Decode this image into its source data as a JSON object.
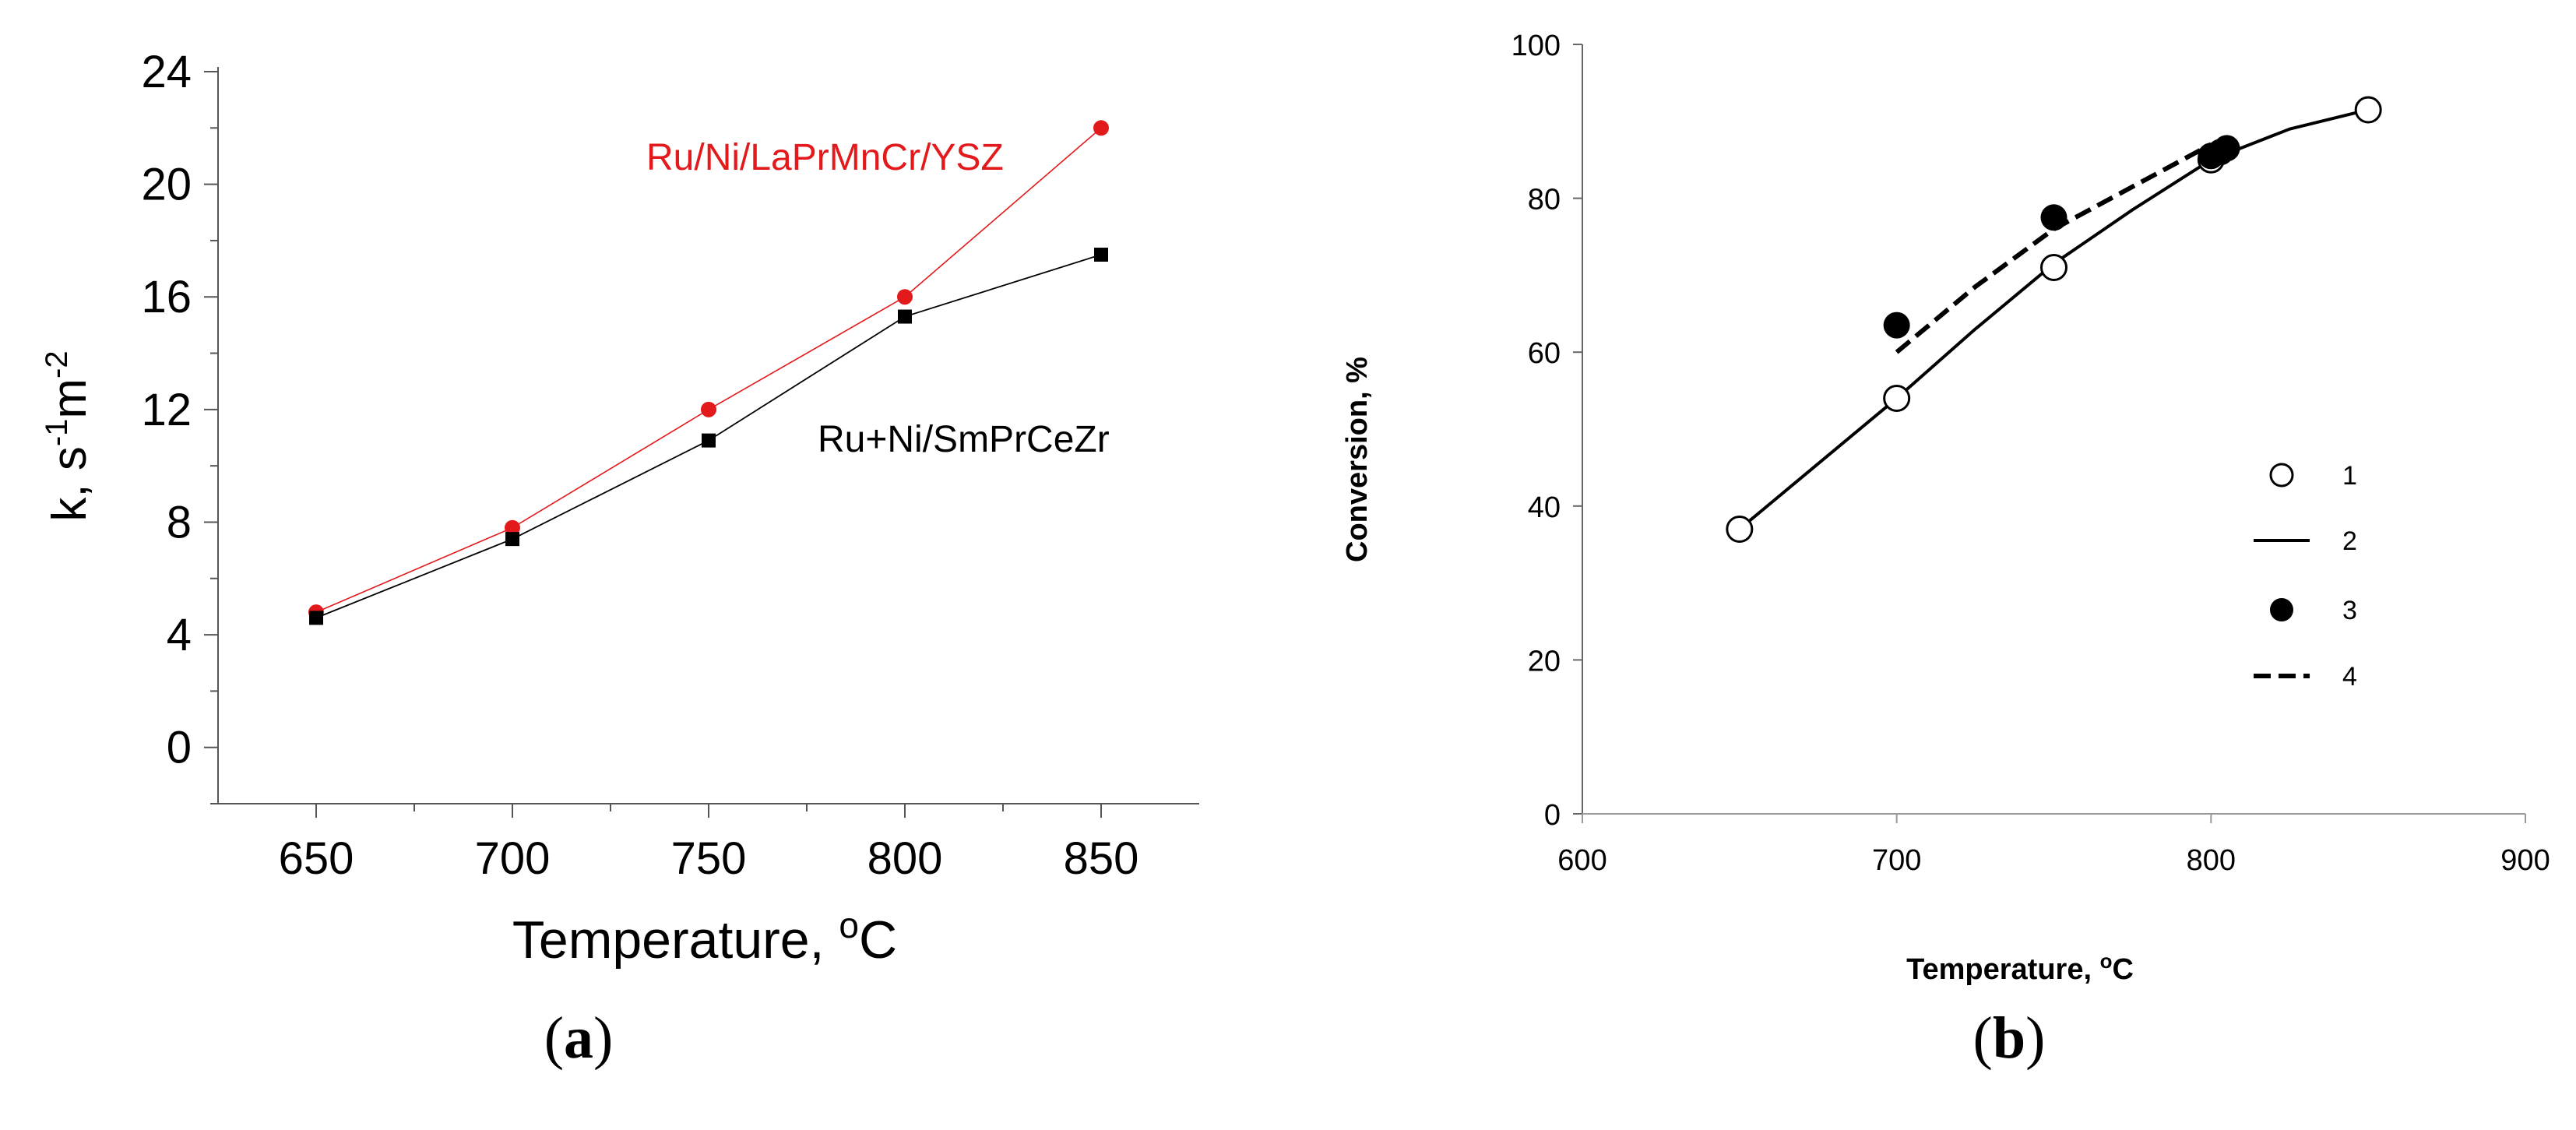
{
  "chart_data": [
    {
      "type": "line",
      "panel": "a",
      "xlabel_main": "Temperature, ",
      "xlabel_sup": "o",
      "xlabel_unit": "C",
      "ylabel_main": "k, s",
      "ylabel_sup1": "-1",
      "ylabel_mid": "m",
      "ylabel_sup2": "-2",
      "xlim": [
        625,
        875
      ],
      "ylim": [
        -2,
        24
      ],
      "xticks": [
        650,
        700,
        750,
        800,
        850
      ],
      "yticks": [
        0,
        4,
        8,
        12,
        16,
        20,
        24
      ],
      "series": [
        {
          "name": "Ru/Ni/LaPrMnCr/YSZ",
          "color": "#e31a1c",
          "marker": "circle",
          "x": [
            650,
            700,
            750,
            800,
            850
          ],
          "y": [
            4.8,
            7.8,
            12.0,
            16.0,
            22.0
          ]
        },
        {
          "name": "Ru+Ni/SmPrCeZr",
          "color": "#000000",
          "marker": "square",
          "x": [
            650,
            700,
            750,
            800,
            850
          ],
          "y": [
            4.6,
            7.4,
            10.9,
            15.3,
            17.5
          ]
        }
      ]
    },
    {
      "type": "scatter",
      "panel": "b",
      "xlabel_main": "Temperature, ",
      "xlabel_sup": "o",
      "xlabel_unit": "C",
      "ylabel": "Conversion, %",
      "xlim": [
        600,
        900
      ],
      "ylim": [
        0,
        100
      ],
      "xticks": [
        600,
        700,
        800,
        900
      ],
      "yticks": [
        0,
        20,
        40,
        60,
        80,
        100
      ],
      "legend_position": "right",
      "series": [
        {
          "name": "1",
          "style": "open-circle",
          "x": [
            650,
            700,
            750,
            800,
            850
          ],
          "y": [
            37,
            54,
            71,
            85,
            91.5
          ]
        },
        {
          "name": "2",
          "style": "solid-line",
          "x": [
            650,
            675,
            700,
            725,
            750,
            775,
            800,
            825,
            850
          ],
          "y": [
            37,
            45.5,
            54,
            63,
            71.5,
            78.5,
            85,
            89,
            91.5
          ]
        },
        {
          "name": "3",
          "style": "filled-circle",
          "x": [
            700,
            750,
            800,
            803,
            805
          ],
          "y": [
            63.5,
            77.5,
            85.5,
            86,
            86.5
          ]
        },
        {
          "name": "4",
          "style": "dashed-line",
          "x": [
            700,
            725,
            750,
            775,
            800
          ],
          "y": [
            60,
            68.5,
            76,
            81.5,
            87
          ]
        }
      ]
    }
  ],
  "labels": {
    "panel_a": "a",
    "panel_b": "b",
    "open": "(",
    "close": ")"
  }
}
